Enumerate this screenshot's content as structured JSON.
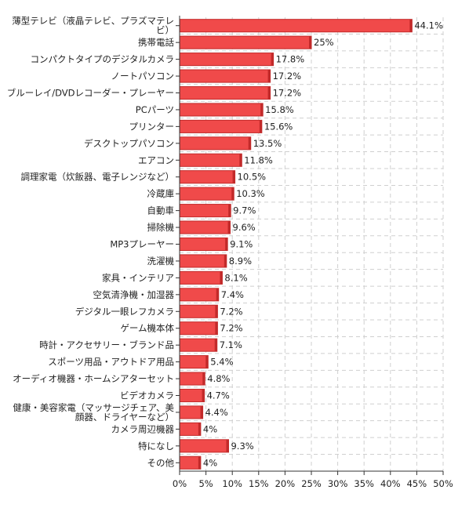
{
  "chart_data": {
    "type": "bar",
    "orientation": "horizontal",
    "title": "",
    "xlabel": "",
    "ylabel": "",
    "xlim": [
      0,
      50
    ],
    "tick_format": "percent",
    "x_ticks": [
      0,
      5,
      10,
      15,
      20,
      25,
      30,
      35,
      40,
      45,
      50
    ],
    "grid": true,
    "legend": "none",
    "bar_color": "#f04a4a",
    "bar_edge_color": "#c22a2a",
    "categories": [
      "薄型テレビ（液晶テレビ、プラズマテレビ）",
      "携帯電話",
      "コンパクトタイプのデジタルカメラ",
      "ノートパソコン",
      "ブルーレイ/DVDレコーダー・プレーヤー",
      "PCパーツ",
      "プリンター",
      "デスクトップパソコン",
      "エアコン",
      "調理家電（炊飯器、電子レンジなど）",
      "冷蔵庫",
      "自動車",
      "掃除機",
      "MP3プレーヤー",
      "洗濯機",
      "家具・インテリア",
      "空気清浄機・加湿器",
      "デジタル一眼レフカメラ",
      "ゲーム機本体",
      "時計・アクセサリー・ブランド品",
      "スポーツ用品・アウトドア用品",
      "オーディオ機器・ホームシアターセット",
      "ビデオカメラ",
      "健康・美容家電（マッサージチェア、美顔器、ドライヤーなど）",
      "カメラ周辺機器",
      "特になし",
      "その他"
    ],
    "category_lines": [
      [
        "薄型テレビ（液晶テレビ、プラズマテレ",
        "ビ）"
      ],
      [
        "携帯電話"
      ],
      [
        "コンパクトタイプのデジタルカメラ"
      ],
      [
        "ノートパソコン"
      ],
      [
        "ブルーレイ/DVDレコーダー・プレーヤー"
      ],
      [
        "PCパーツ"
      ],
      [
        "プリンター"
      ],
      [
        "デスクトップパソコン"
      ],
      [
        "エアコン"
      ],
      [
        "調理家電（炊飯器、電子レンジなど）"
      ],
      [
        "冷蔵庫"
      ],
      [
        "自動車"
      ],
      [
        "掃除機"
      ],
      [
        "MP3プレーヤー"
      ],
      [
        "洗濯機"
      ],
      [
        "家具・インテリア"
      ],
      [
        "空気清浄機・加湿器"
      ],
      [
        "デジタル一眼レフカメラ"
      ],
      [
        "ゲーム機本体"
      ],
      [
        "時計・アクセサリー・ブランド品"
      ],
      [
        "スポーツ用品・アウトドア用品"
      ],
      [
        "オーディオ機器・ホームシアターセット"
      ],
      [
        "ビデオカメラ"
      ],
      [
        "健康・美容家電（マッサージチェア、美",
        "顔器、ドライヤーなど）"
      ],
      [
        "カメラ周辺機器"
      ],
      [
        "特になし"
      ],
      [
        "その他"
      ]
    ],
    "values": [
      44.1,
      25,
      17.8,
      17.2,
      17.2,
      15.8,
      15.6,
      13.5,
      11.8,
      10.5,
      10.3,
      9.7,
      9.6,
      9.1,
      8.9,
      8.1,
      7.4,
      7.2,
      7.2,
      7.1,
      5.4,
      4.8,
      4.7,
      4.4,
      4,
      9.3,
      4
    ]
  }
}
